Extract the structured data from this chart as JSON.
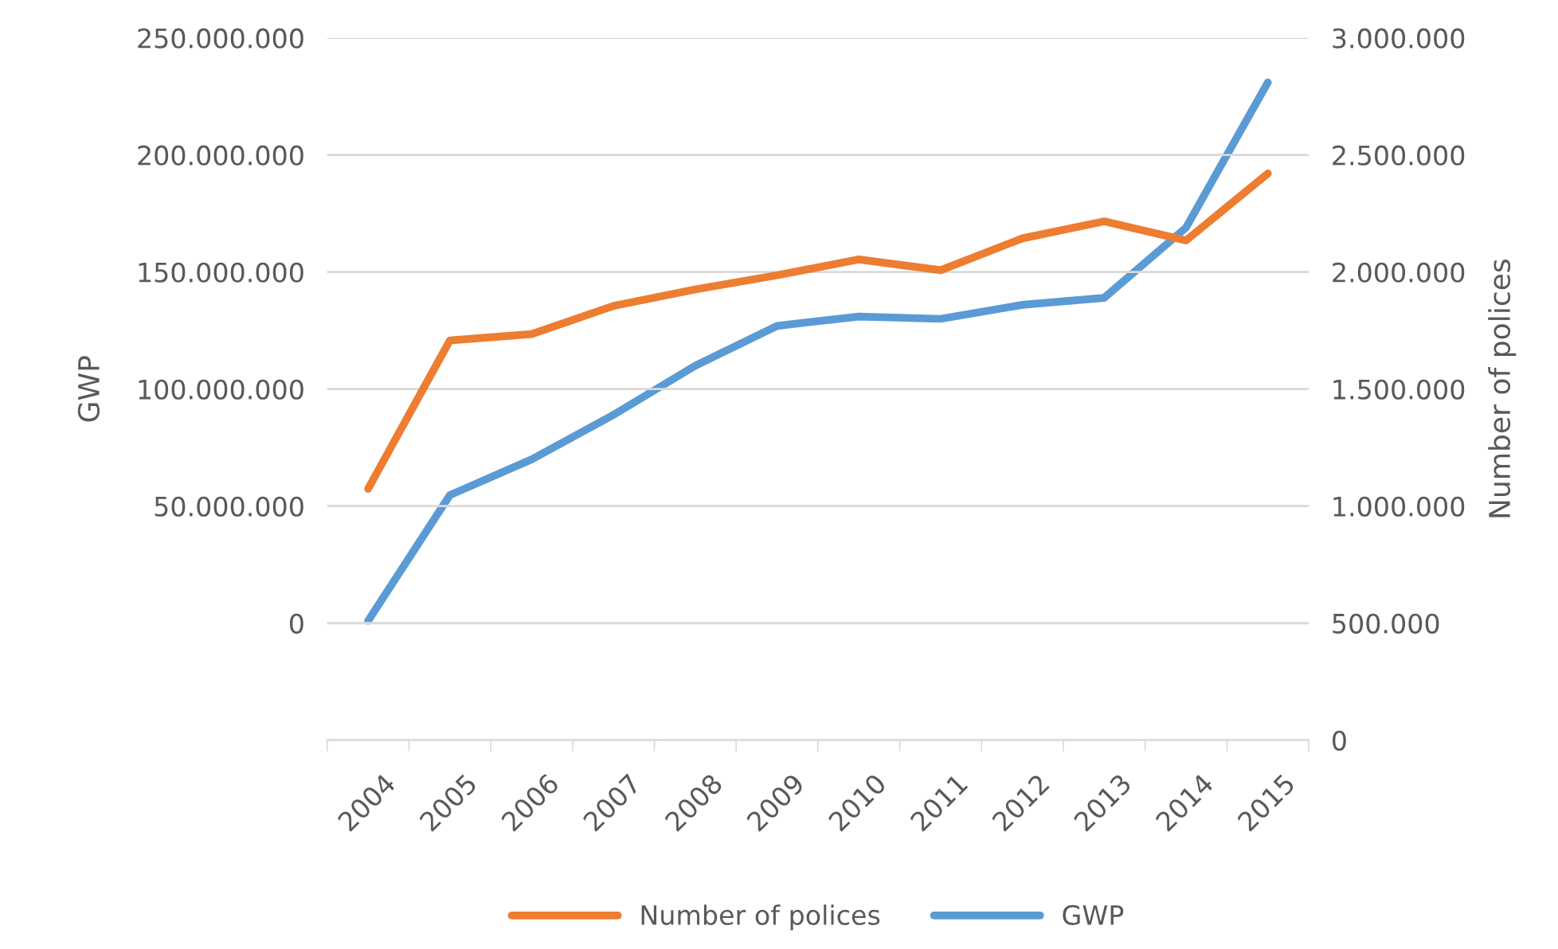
{
  "chart_data": {
    "type": "line",
    "ylabel": "GWP",
    "y2label": "Number of polices",
    "categories": [
      "2004",
      "2005",
      "2006",
      "2007",
      "2008",
      "2009",
      "2010",
      "2011",
      "2012",
      "2013",
      "2014",
      "2015"
    ],
    "series": [
      {
        "name": "Number of polices",
        "color": "#ed7d31",
        "axis": "y2",
        "values": [
          1074000,
          1708000,
          1735000,
          1855000,
          1926000,
          1986000,
          2054000,
          2008000,
          2144000,
          2217000,
          2135000,
          2421000
        ]
      },
      {
        "name": "GWP",
        "color": "#5b9bd5",
        "values": [
          1000000,
          54700000,
          70000000,
          89000000,
          110000000,
          127000000,
          131000000,
          130000000,
          136000000,
          139000000,
          169000000,
          231000000
        ]
      }
    ],
    "ylim": [
      -50000000,
      250000000
    ],
    "yticks": [
      {
        "value": 0,
        "label": "0"
      },
      {
        "value": 50000000,
        "label": "50.000.000"
      },
      {
        "value": 100000000,
        "label": "100.000.000"
      },
      {
        "value": 150000000,
        "label": "150.000.000"
      },
      {
        "value": 200000000,
        "label": "200.000.000"
      },
      {
        "value": 250000000,
        "label": "250.000.000"
      }
    ],
    "y2lim": [
      0,
      3000000
    ],
    "y2ticks": [
      {
        "value": 0,
        "label": "0"
      },
      {
        "value": 500000,
        "label": "500.000"
      },
      {
        "value": 1000000,
        "label": "1.000.000"
      },
      {
        "value": 1500000,
        "label": "1.500.000"
      },
      {
        "value": 2000000,
        "label": "2.000.000"
      },
      {
        "value": 2500000,
        "label": "2.500.000"
      },
      {
        "value": 3000000,
        "label": "3.000.000"
      }
    ],
    "grid": "y2",
    "legend": "bottom",
    "line_style": "solid",
    "marker": "none"
  }
}
